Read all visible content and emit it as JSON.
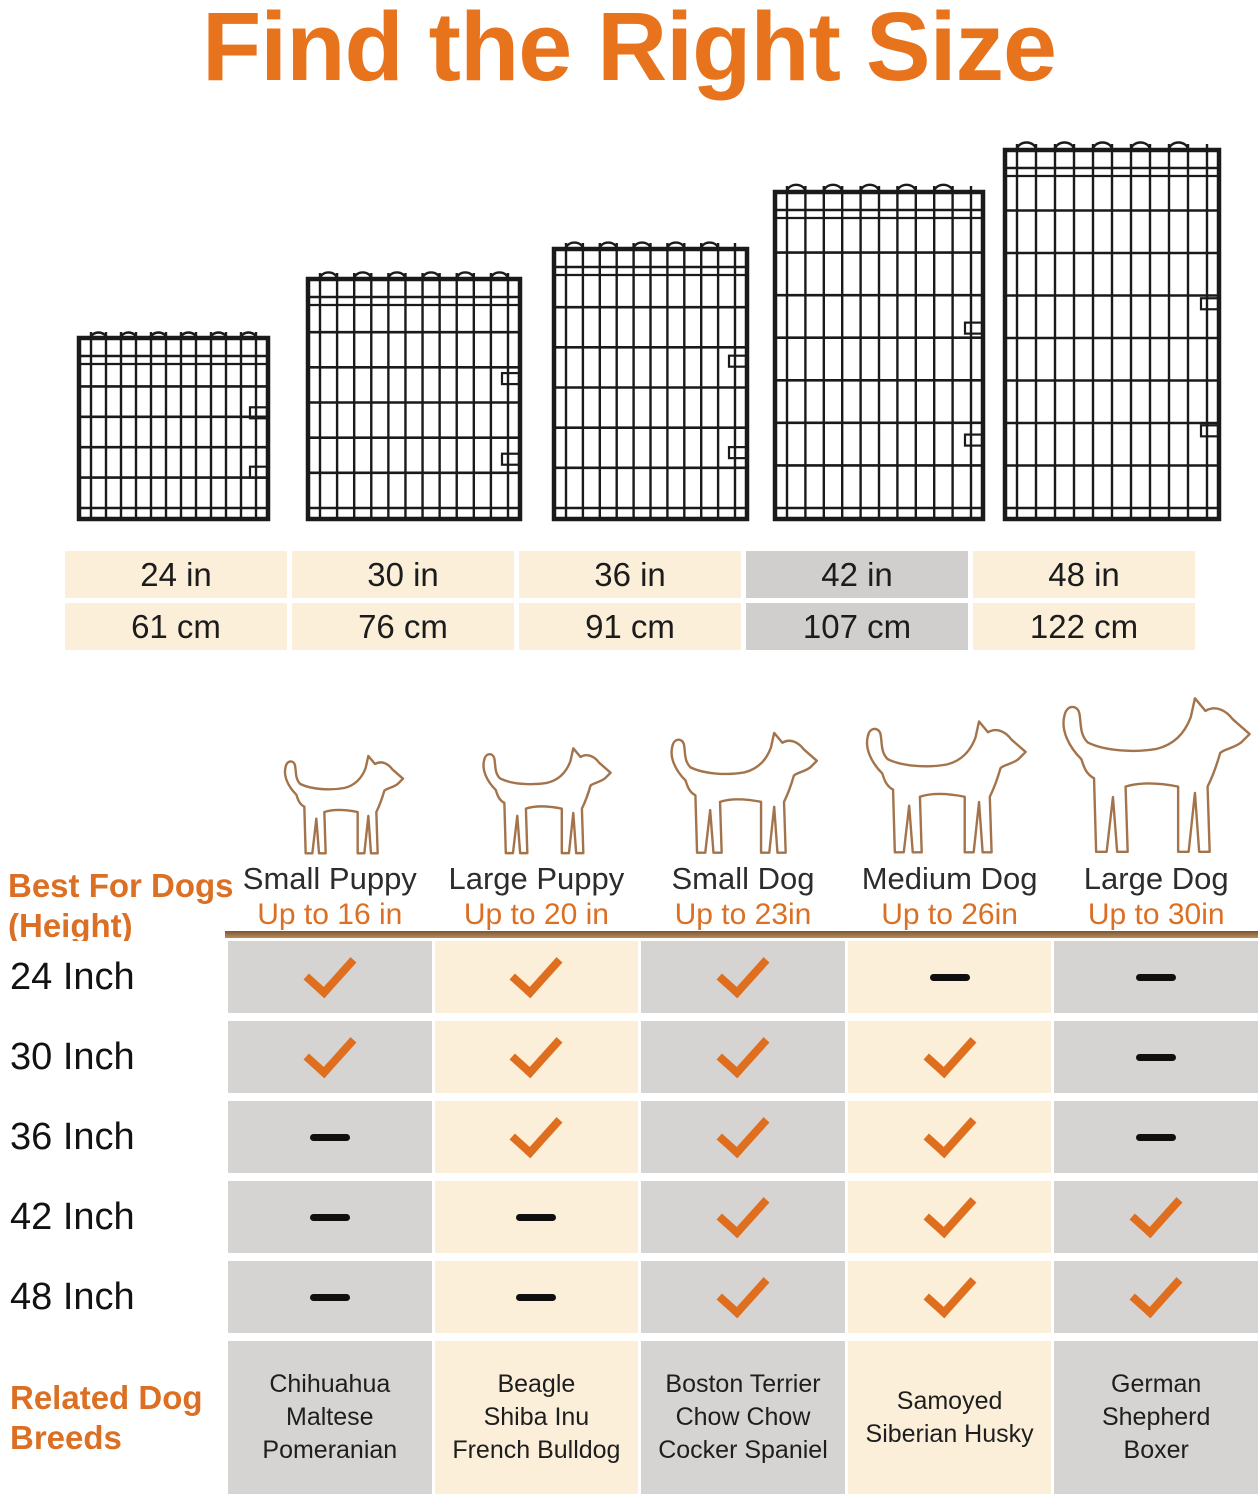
{
  "title": "Find the Right Size",
  "colors": {
    "title_orange": "#E8731D",
    "accent_orange": "#DB6F24",
    "check_orange": "#DF6F1E",
    "cell_cream": "#FBEFD9",
    "cell_gray": "#D5D4D2",
    "highlight_gray": "#D0CFCD",
    "divider_brown": "#A87C50",
    "dog_outline_brown": "#A3744B",
    "wire_black": "#1A1A1A"
  },
  "size_table": {
    "inches": [
      "24 in",
      "30 in",
      "36 in",
      "42 in",
      "48 in"
    ],
    "cm": [
      "61 cm",
      "76 cm",
      "91 cm",
      "107 cm",
      "122 cm"
    ],
    "highlighted_value": "42 in",
    "highlighted_index": 3
  },
  "best_for_label": "Best For Dogs\n(Height)",
  "columns": [
    {
      "name": "Small Puppy",
      "height": "Up to 16 in",
      "icon": "small-puppy-outline"
    },
    {
      "name": "Large Puppy",
      "height": "Up to 20 in",
      "icon": "large-puppy-outline"
    },
    {
      "name": "Small Dog",
      "height": "Up to 23in",
      "icon": "small-dog-outline"
    },
    {
      "name": "Medium Dog",
      "height": "Up to 26in",
      "icon": "medium-dog-outline"
    },
    {
      "name": "Large Dog",
      "height": "Up to 30in",
      "icon": "large-dog-outline"
    }
  ],
  "matrix": {
    "row_labels": [
      "24 Inch",
      "30 Inch",
      "36 Inch",
      "42 Inch",
      "48 Inch"
    ],
    "rows": [
      [
        "check",
        "check",
        "check",
        "dash",
        "dash"
      ],
      [
        "check",
        "check",
        "check",
        "check",
        "dash"
      ],
      [
        "dash",
        "check",
        "check",
        "check",
        "dash"
      ],
      [
        "dash",
        "dash",
        "check",
        "check",
        "check"
      ],
      [
        "dash",
        "dash",
        "check",
        "check",
        "check"
      ]
    ]
  },
  "related_label": "Related Dog\nBreeds",
  "related_breeds": [
    "Chihuahua\nMaltese\nPomeranian",
    "Beagle\nShiba Inu\nFrench Bulldog",
    "Boston Terrier\nChow Chow\nCocker Spaniel",
    "Samoyed\nSiberian Husky",
    "German\nShepherd\nBoxer"
  ]
}
